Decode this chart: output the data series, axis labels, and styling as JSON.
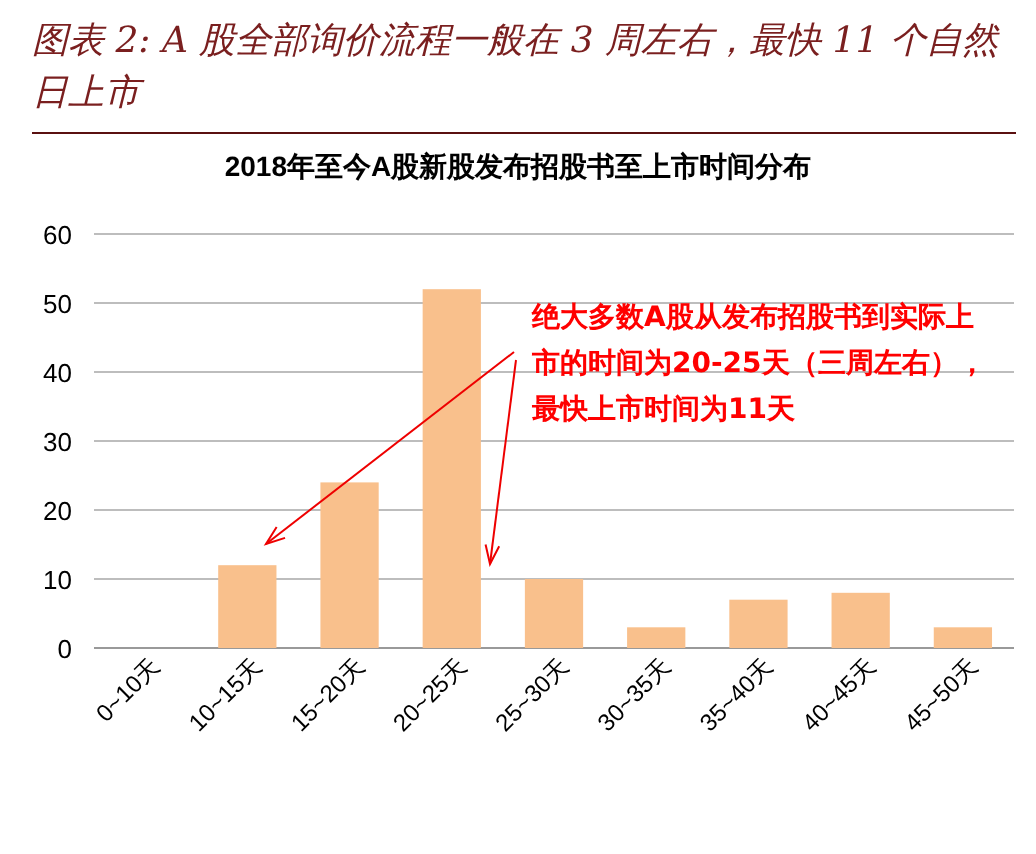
{
  "chart_data": {
    "type": "bar",
    "title": "图表 2: A 股全部询价流程一般在 3 周左右，最快 11 个自然日上市",
    "subtitle": "2018年至今A股新股发布招股书至上市时间分布",
    "categories": [
      "0~10天",
      "10~15天",
      "15~20天",
      "20~25天",
      "25~30天",
      "30~35天",
      "35~40天",
      "40~45天",
      "45~50天"
    ],
    "values": [
      0,
      12,
      24,
      52,
      10,
      3,
      7,
      8,
      3
    ],
    "color": "#f9c08c",
    "ylim": [
      0,
      60
    ],
    "yticks": [
      0,
      10,
      20,
      30,
      40,
      50,
      60
    ],
    "grid": "y",
    "annotations": [
      "绝大多数A股从发布招股书到实际上市的时间为20-25天（三周左右），最快上市时间为11天"
    ]
  }
}
